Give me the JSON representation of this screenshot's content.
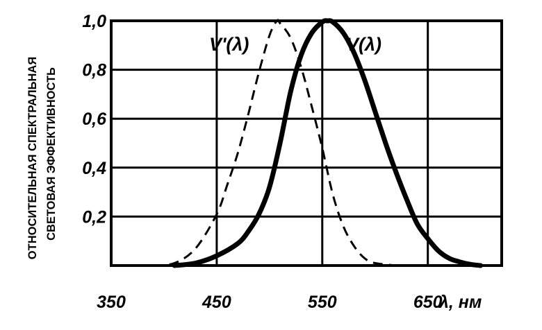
{
  "chart_data": {
    "type": "line",
    "xlabel": "λ, нм",
    "ylabel_lines": [
      "ОТНОСИТЕЛЬНАЯ СПЕКТРАЛЬНАЯ",
      "СВЕТОВАЯ ЭФФЕКТИВНОСТЬ"
    ],
    "xlim": [
      350,
      720
    ],
    "ylim": [
      0,
      1
    ],
    "x_ticks": [
      350,
      450,
      550,
      650
    ],
    "x_tick_labels": [
      "350",
      "450",
      "550",
      "650"
    ],
    "y_ticks": [
      0.2,
      0.4,
      0.6,
      0.8,
      1.0
    ],
    "y_tick_labels": [
      "0,2",
      "0,4",
      "0,6",
      "0,8",
      "1,0"
    ],
    "grid": true,
    "series": [
      {
        "name": "V'(λ)",
        "style": "dashed",
        "x": [
          390,
          410,
          430,
          450,
          460,
          470,
          480,
          490,
          500,
          507,
          510,
          520,
          530,
          540,
          550,
          560,
          570,
          580,
          590,
          600,
          620
        ],
        "values": [
          0.0,
          0.01,
          0.07,
          0.21,
          0.33,
          0.46,
          0.62,
          0.79,
          0.94,
          1.0,
          0.99,
          0.93,
          0.81,
          0.65,
          0.48,
          0.29,
          0.16,
          0.08,
          0.03,
          0.01,
          0.0
        ]
      },
      {
        "name": "V(λ)",
        "style": "solid",
        "x": [
          410,
          430,
          450,
          470,
          480,
          490,
          500,
          510,
          520,
          530,
          540,
          550,
          555,
          560,
          570,
          580,
          590,
          600,
          610,
          620,
          630,
          640,
          650,
          660,
          670,
          680,
          690,
          700
        ],
        "values": [
          0.0,
          0.01,
          0.04,
          0.09,
          0.14,
          0.21,
          0.32,
          0.5,
          0.71,
          0.86,
          0.95,
          0.995,
          1.0,
          0.995,
          0.95,
          0.87,
          0.76,
          0.63,
          0.5,
          0.38,
          0.27,
          0.17,
          0.11,
          0.06,
          0.03,
          0.015,
          0.005,
          0.0
        ]
      }
    ]
  }
}
